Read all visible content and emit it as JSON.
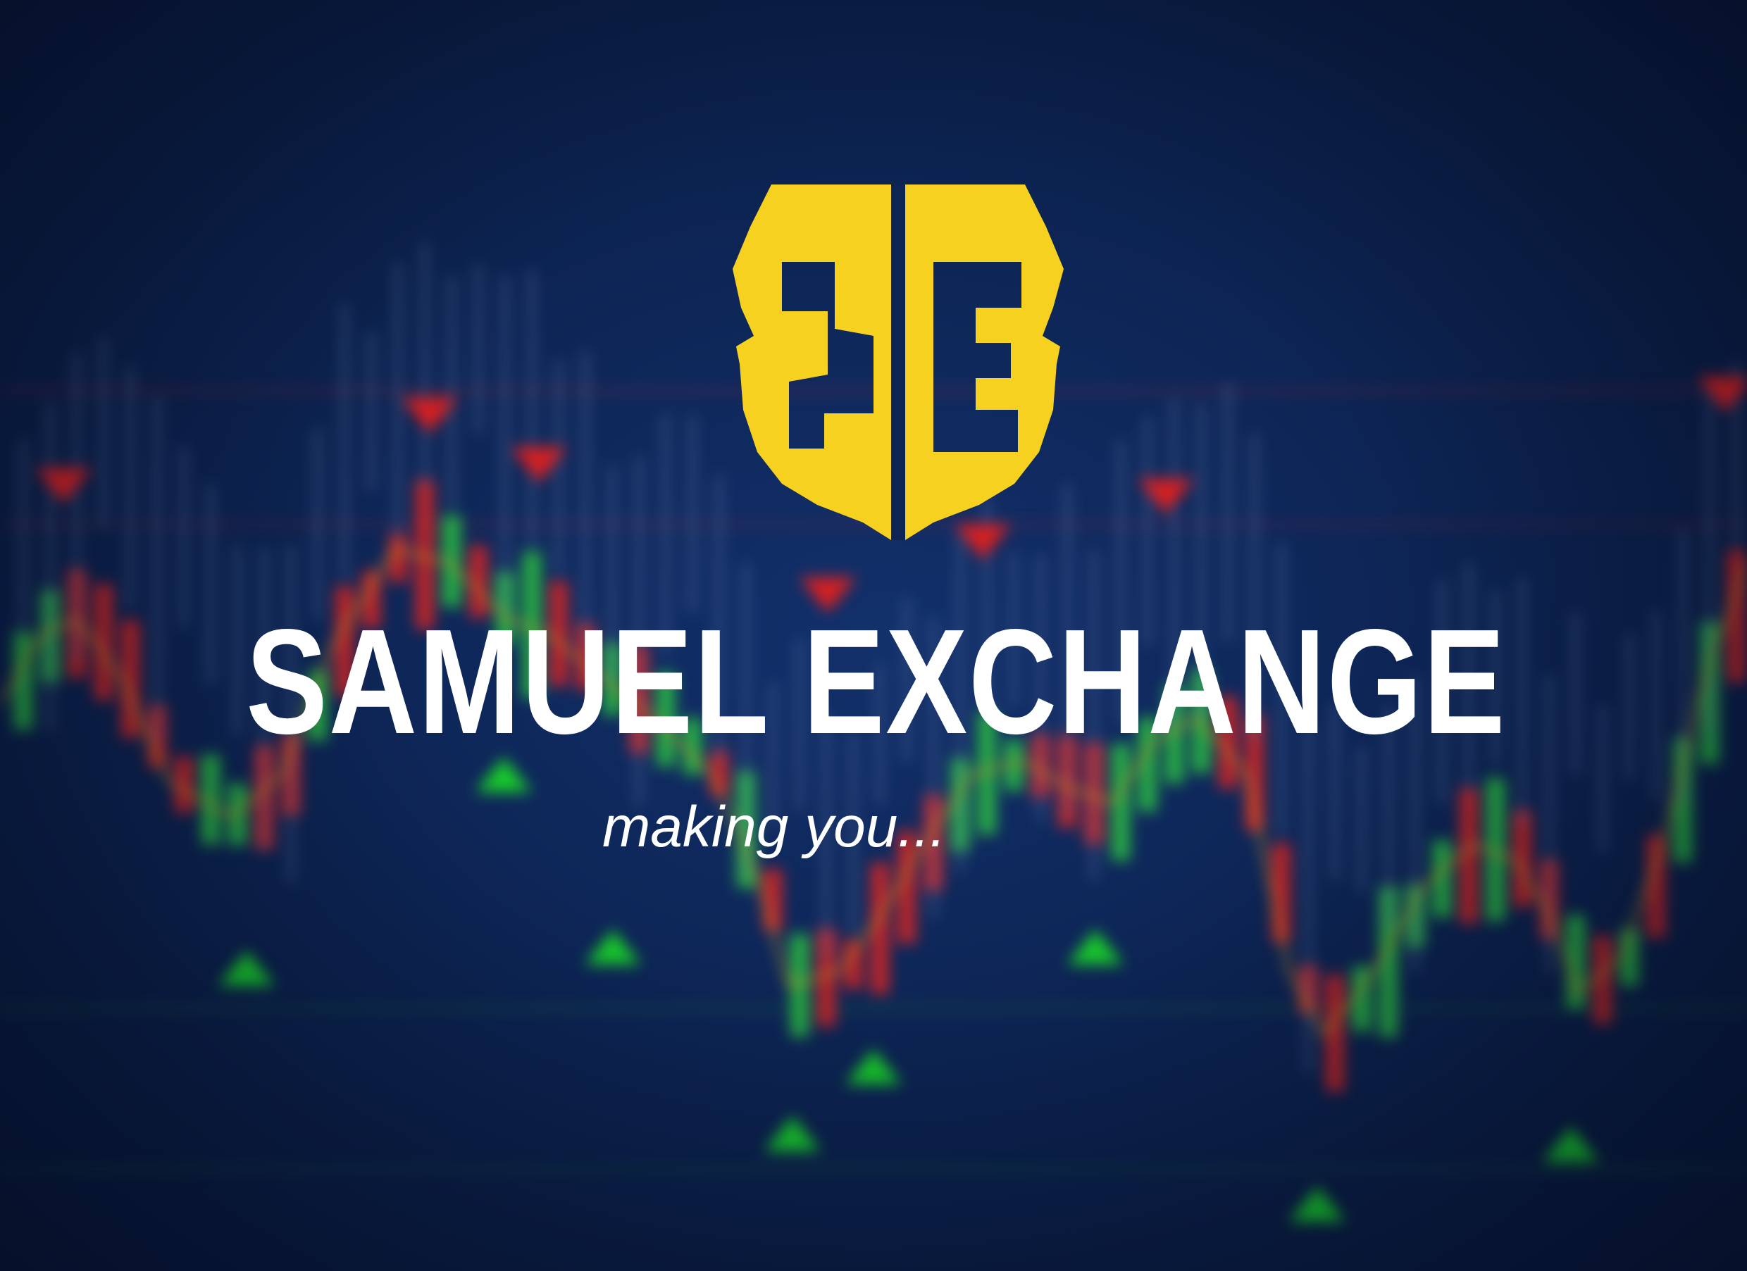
{
  "brand": {
    "monogram": "SE",
    "name": "SAMUEL EXCHANGE",
    "tagline": "making you..."
  },
  "colors": {
    "background": "#0d2555",
    "logo_gold": "#f7d11f",
    "text": "#ffffff",
    "candle_up": "#2ecc40",
    "candle_down": "#e8261f",
    "marker_up": "#19d12a",
    "marker_down": "#e0201e"
  },
  "icons": {
    "logo": "se-shield-logo-icon",
    "background": "candlestick-chart-background"
  }
}
